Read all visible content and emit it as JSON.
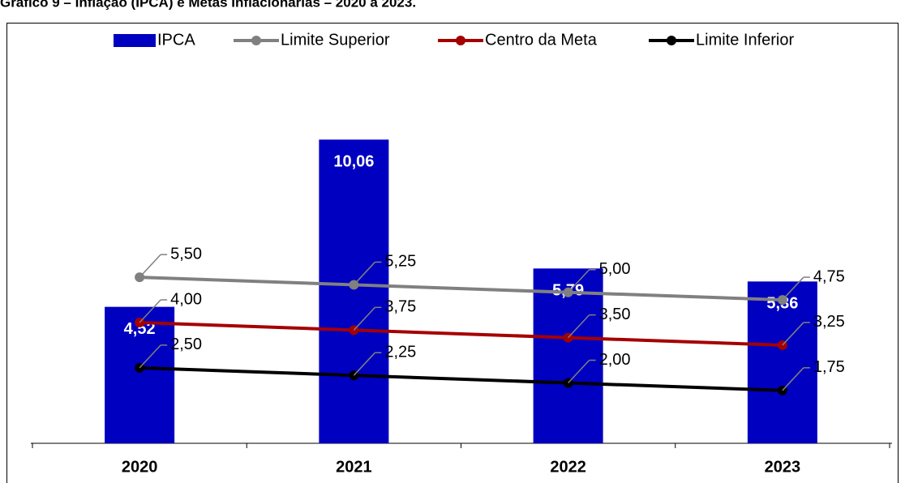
{
  "chart_data": {
    "type": "bar",
    "title": "Gráfico 9 – Inflação (IPCA) e Metas Inflacionárias – 2020 a 2023.",
    "categories": [
      "2020",
      "2021",
      "2022",
      "2023"
    ],
    "ylim": [
      0,
      12
    ],
    "legend": "top",
    "series": [
      {
        "name": "IPCA",
        "type": "bar",
        "color": "#0000c0",
        "values": [
          4.52,
          10.06,
          5.79,
          5.36
        ],
        "value_labels": [
          "4,52",
          "10,06",
          "5,79",
          "5,36"
        ]
      },
      {
        "name": "Limite Superior",
        "type": "line",
        "color": "#808080",
        "values": [
          5.5,
          5.25,
          5.0,
          4.75
        ],
        "value_labels": [
          "5,50",
          "5,25",
          "5,00",
          "4,75"
        ]
      },
      {
        "name": "Centro da Meta",
        "type": "line",
        "color": "#a50000",
        "values": [
          4.0,
          3.75,
          3.5,
          3.25
        ],
        "value_labels": [
          "4,00",
          "3,75",
          "3,50",
          "3,25"
        ]
      },
      {
        "name": "Limite Inferior",
        "type": "line",
        "color": "#000000",
        "values": [
          2.5,
          2.25,
          2.0,
          1.75
        ],
        "value_labels": [
          "2,50",
          "2,25",
          "2,00",
          "1,75"
        ]
      }
    ]
  }
}
